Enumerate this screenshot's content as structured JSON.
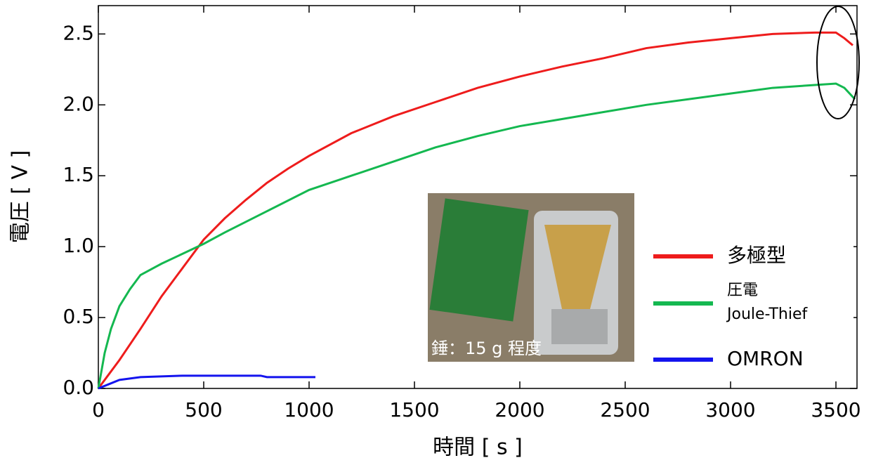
{
  "chart_data": {
    "type": "line",
    "xlabel": "時間 [ s ]",
    "ylabel": "電圧 [ V ]",
    "xlim": [
      0,
      3600
    ],
    "ylim": [
      0,
      2.7
    ],
    "xticks": [
      0,
      500,
      1000,
      1500,
      2000,
      2500,
      3000,
      3500
    ],
    "yticks": [
      {
        "value": 0,
        "label": "0.0"
      },
      0.5,
      {
        "value": 1,
        "label": "1.0"
      },
      1.5,
      {
        "value": 2,
        "label": "2.0"
      },
      2.5
    ],
    "legend": "right",
    "inset_caption": "錘：15 g 程度",
    "series": [
      {
        "name": "多極型",
        "color": "#ee1c1c",
        "x": [
          0,
          50,
          100,
          200,
          300,
          400,
          500,
          600,
          700,
          800,
          900,
          1000,
          1200,
          1400,
          1600,
          1800,
          2000,
          2200,
          2400,
          2600,
          2800,
          3000,
          3200,
          3400,
          3500,
          3540,
          3580
        ],
        "values": [
          0,
          0.1,
          0.2,
          0.42,
          0.65,
          0.85,
          1.05,
          1.2,
          1.33,
          1.45,
          1.55,
          1.64,
          1.8,
          1.92,
          2.02,
          2.12,
          2.2,
          2.27,
          2.33,
          2.4,
          2.44,
          2.47,
          2.5,
          2.51,
          2.51,
          2.47,
          2.42
        ]
      },
      {
        "name": "圧電\nJoule-Thief",
        "color": "#14b850",
        "x": [
          0,
          30,
          60,
          100,
          150,
          200,
          300,
          400,
          500,
          600,
          800,
          1000,
          1200,
          1400,
          1600,
          1800,
          2000,
          2200,
          2400,
          2600,
          2800,
          3000,
          3200,
          3400,
          3500,
          3540,
          3590
        ],
        "values": [
          0,
          0.25,
          0.42,
          0.58,
          0.7,
          0.8,
          0.88,
          0.95,
          1.02,
          1.1,
          1.25,
          1.4,
          1.5,
          1.6,
          1.7,
          1.78,
          1.85,
          1.9,
          1.95,
          2.0,
          2.04,
          2.08,
          2.12,
          2.14,
          2.15,
          2.12,
          2.04
        ]
      },
      {
        "name": "OMRON",
        "color": "#1414ee",
        "x": [
          0,
          50,
          100,
          200,
          400,
          770,
          800,
          1030
        ],
        "values": [
          0,
          0.03,
          0.06,
          0.08,
          0.09,
          0.09,
          0.08,
          0.08
        ]
      }
    ]
  }
}
